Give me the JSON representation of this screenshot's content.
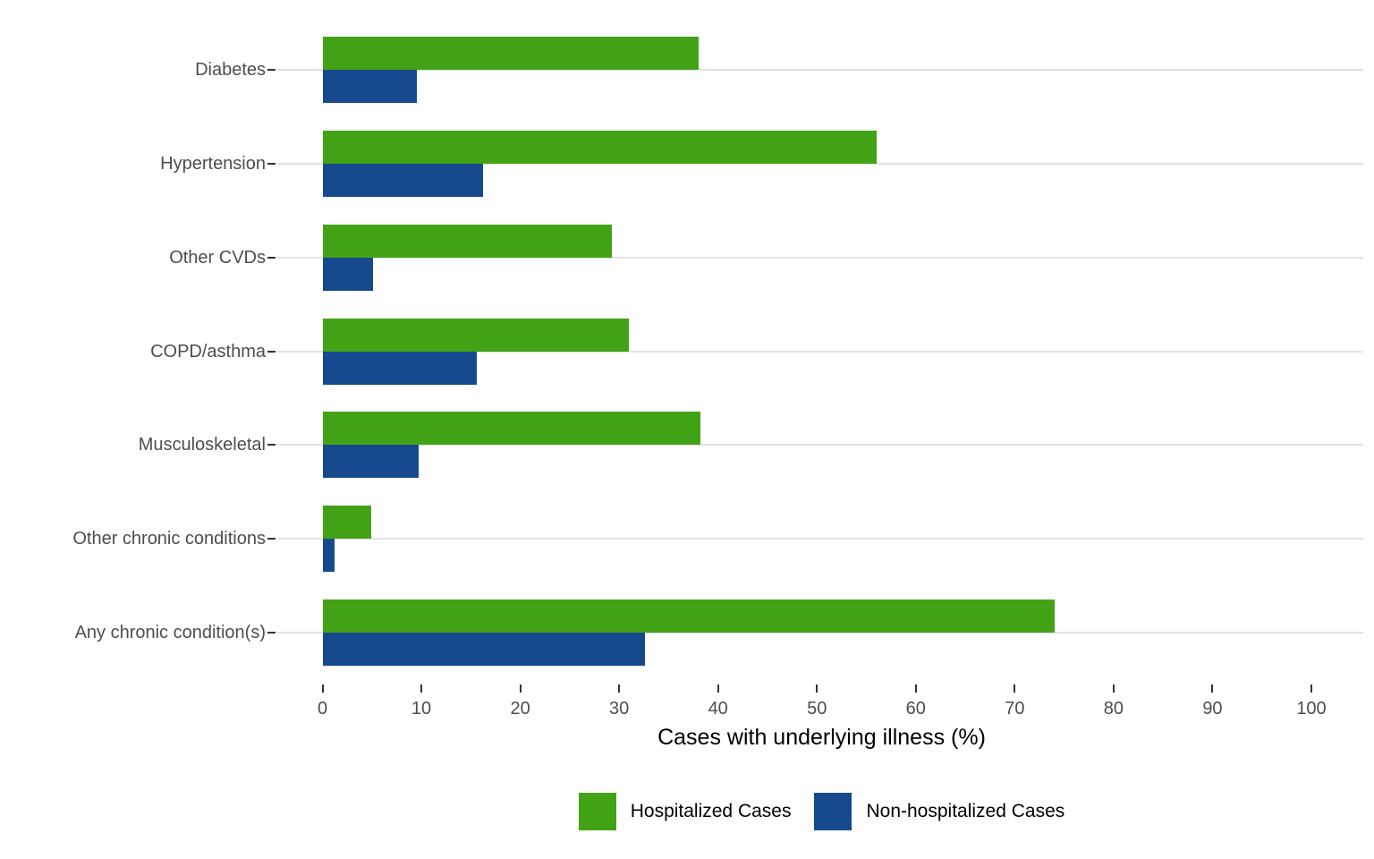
{
  "chart_data": {
    "type": "bar",
    "orientation": "horizontal",
    "title": "",
    "xlabel": "Cases with underlying illness (%)",
    "ylabel": "",
    "xlim": [
      0,
      100
    ],
    "xticks": [
      0,
      10,
      20,
      30,
      40,
      50,
      60,
      70,
      80,
      90,
      100
    ],
    "grid": "horizontal category gridlines only, light gray on white",
    "legend_position": "bottom-center",
    "categories": [
      "Diabetes",
      "Hypertension",
      "Other CVDs",
      "COPD/asthma",
      "Musculoskeletal",
      "Other chronic conditions",
      "Any chronic condition(s)"
    ],
    "series": [
      {
        "name": "Hospitalized Cases",
        "color": "#43a317",
        "values": [
          38,
          56,
          29.3,
          31,
          38.2,
          4.9,
          74
        ]
      },
      {
        "name": "Non-hospitalized Cases",
        "color": "#17498f",
        "values": [
          9.5,
          16.2,
          5.1,
          15.6,
          9.7,
          1.2,
          32.6
        ]
      }
    ]
  },
  "style": {
    "background": "#ffffff",
    "gridline_color": "#e2e2e2",
    "tick_color": "#333333",
    "axis_text_color": "#4d4d4d",
    "title_color": "#000000"
  }
}
